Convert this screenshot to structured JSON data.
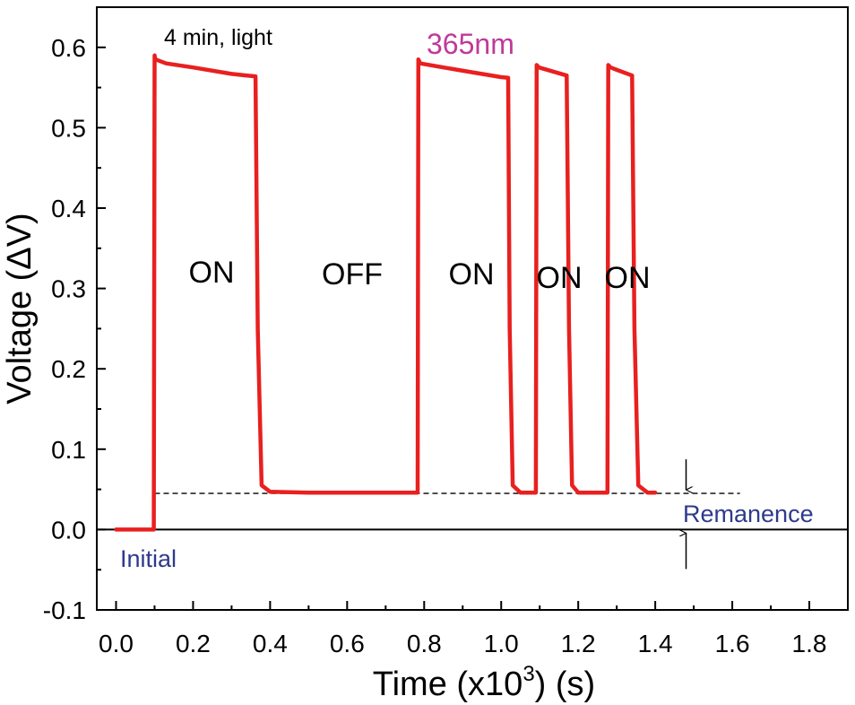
{
  "chart_data": {
    "type": "line",
    "xlabel": "Time (x10",
    "xlabel_sup": "3",
    "xlabel_suffix": ") (s)",
    "ylabel": "Voltage (ΔV)",
    "xlim": [
      -0.05,
      1.9
    ],
    "ylim": [
      -0.1,
      0.65
    ],
    "grid": false,
    "x_ticks": [
      0.0,
      0.2,
      0.4,
      0.6,
      0.8,
      1.0,
      1.2,
      1.4,
      1.6,
      1.8
    ],
    "x_tick_labels": [
      "0.0",
      "0.2",
      "0.4",
      "0.6",
      "0.8",
      "1.0",
      "1.2",
      "1.4",
      "1.6",
      "1.8"
    ],
    "y_ticks": [
      -0.1,
      0.0,
      0.1,
      0.2,
      0.3,
      0.4,
      0.5,
      0.6
    ],
    "y_tick_labels": [
      "-0.1",
      "0.0",
      "0.1",
      "0.2",
      "0.3",
      "0.4",
      "0.5",
      "0.6"
    ],
    "series": [
      {
        "color": "#e8201f",
        "x": [
          0.0,
          0.098,
          0.1,
          0.102,
          0.13,
          0.2,
          0.3,
          0.34,
          0.362,
          0.368,
          0.378,
          0.4,
          0.5,
          0.6,
          0.7,
          0.783,
          0.785,
          0.79,
          0.85,
          1.0,
          1.018,
          1.022,
          1.03,
          1.05,
          1.09,
          1.092,
          1.098,
          1.12,
          1.17,
          1.176,
          1.184,
          1.2,
          1.276,
          1.278,
          1.284,
          1.3,
          1.34,
          1.346,
          1.356,
          1.38,
          1.4
        ],
        "y": [
          0.0,
          0.0,
          0.59,
          0.585,
          0.58,
          0.575,
          0.567,
          0.565,
          0.564,
          0.25,
          0.055,
          0.047,
          0.046,
          0.046,
          0.046,
          0.046,
          0.585,
          0.58,
          0.575,
          0.563,
          0.562,
          0.25,
          0.055,
          0.046,
          0.046,
          0.578,
          0.575,
          0.572,
          0.565,
          0.25,
          0.055,
          0.046,
          0.046,
          0.578,
          0.575,
          0.572,
          0.565,
          0.25,
          0.055,
          0.046,
          0.046
        ]
      }
    ],
    "remanence_level": 0.045,
    "remanence_line_x": [
      0.1,
      1.62
    ],
    "zero_line_x": [
      -0.05,
      1.9
    ],
    "marker_x": 1.48,
    "annotations": {
      "light": "4 min, light",
      "wavelength": "365nm",
      "on1": "ON",
      "off": "OFF",
      "on2": "ON",
      "on3": "ON",
      "on4": "ON",
      "remanence": "Remanence",
      "initial": "Initial"
    },
    "colors": {
      "curve": "#e8201f",
      "wavelength": "#c0399a",
      "annotation_blue": "#2e3a8c",
      "axis": "#000000"
    }
  }
}
